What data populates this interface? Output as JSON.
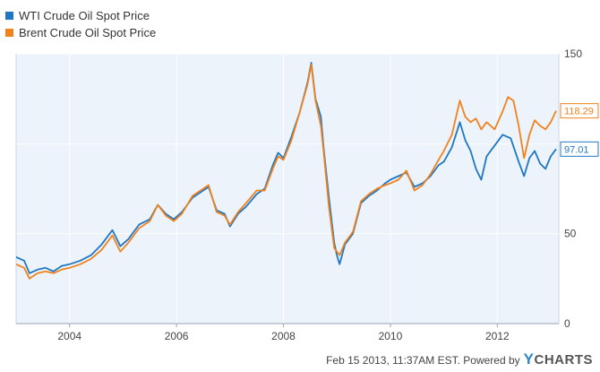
{
  "legend": {
    "items": [
      {
        "label": "WTI Crude Oil Spot Price",
        "color": "#1f77c4"
      },
      {
        "label": "Brent Crude Oil Spot Price",
        "color": "#f0821e"
      }
    ]
  },
  "footer": {
    "text": "Feb 15 2013, 11:37AM EST. Powered by",
    "brand_y": "Y",
    "brand_rest": "CHARTS"
  },
  "chart_data": {
    "type": "line",
    "xlim": [
      2003.0,
      2013.15
    ],
    "ylim": [
      0,
      150
    ],
    "x_ticks": [
      {
        "label": "2004",
        "value": 2004
      },
      {
        "label": "2006",
        "value": 2006
      },
      {
        "label": "2008",
        "value": 2008
      },
      {
        "label": "2010",
        "value": 2010
      },
      {
        "label": "2012",
        "value": 2012
      }
    ],
    "y_ticks": [
      {
        "label": "150",
        "value": 150
      },
      {
        "label": "50",
        "value": 50
      },
      {
        "label": "0",
        "value": 0
      }
    ],
    "grid": true,
    "end_labels": [
      {
        "series": "Brent Crude Oil Spot Price",
        "label": "118.29",
        "value": 118.29
      },
      {
        "series": "WTI Crude Oil Spot Price",
        "label": "97.01",
        "value": 97.01
      }
    ],
    "series": [
      {
        "name": "WTI Crude Oil Spot Price",
        "color": "#1f77c4",
        "points": [
          [
            2003.0,
            37
          ],
          [
            2003.15,
            35
          ],
          [
            2003.25,
            28
          ],
          [
            2003.4,
            30
          ],
          [
            2003.55,
            31
          ],
          [
            2003.7,
            29
          ],
          [
            2003.85,
            32
          ],
          [
            2004.0,
            33
          ],
          [
            2004.2,
            35
          ],
          [
            2004.4,
            38
          ],
          [
            2004.6,
            44
          ],
          [
            2004.8,
            52
          ],
          [
            2004.95,
            43
          ],
          [
            2005.1,
            47
          ],
          [
            2005.3,
            55
          ],
          [
            2005.5,
            58
          ],
          [
            2005.65,
            66
          ],
          [
            2005.8,
            61
          ],
          [
            2005.95,
            58
          ],
          [
            2006.1,
            62
          ],
          [
            2006.3,
            70
          ],
          [
            2006.5,
            74
          ],
          [
            2006.6,
            76
          ],
          [
            2006.75,
            63
          ],
          [
            2006.9,
            61
          ],
          [
            2007.0,
            54
          ],
          [
            2007.15,
            61
          ],
          [
            2007.3,
            65
          ],
          [
            2007.5,
            72
          ],
          [
            2007.65,
            75
          ],
          [
            2007.8,
            88
          ],
          [
            2007.9,
            95
          ],
          [
            2008.0,
            92
          ],
          [
            2008.15,
            104
          ],
          [
            2008.3,
            117
          ],
          [
            2008.45,
            134
          ],
          [
            2008.52,
            145
          ],
          [
            2008.6,
            125
          ],
          [
            2008.7,
            115
          ],
          [
            2008.75,
            98
          ],
          [
            2008.85,
            70
          ],
          [
            2008.95,
            45
          ],
          [
            2009.0,
            38
          ],
          [
            2009.05,
            33
          ],
          [
            2009.15,
            44
          ],
          [
            2009.3,
            50
          ],
          [
            2009.45,
            67
          ],
          [
            2009.6,
            71
          ],
          [
            2009.75,
            74
          ],
          [
            2009.9,
            78
          ],
          [
            2010.0,
            80
          ],
          [
            2010.15,
            82
          ],
          [
            2010.3,
            84
          ],
          [
            2010.45,
            76
          ],
          [
            2010.6,
            78
          ],
          [
            2010.75,
            82
          ],
          [
            2010.9,
            88
          ],
          [
            2011.0,
            90
          ],
          [
            2011.15,
            98
          ],
          [
            2011.3,
            112
          ],
          [
            2011.4,
            102
          ],
          [
            2011.5,
            96
          ],
          [
            2011.6,
            86
          ],
          [
            2011.7,
            80
          ],
          [
            2011.8,
            93
          ],
          [
            2011.95,
            99
          ],
          [
            2012.1,
            105
          ],
          [
            2012.25,
            103
          ],
          [
            2012.4,
            90
          ],
          [
            2012.5,
            82
          ],
          [
            2012.6,
            92
          ],
          [
            2012.7,
            96
          ],
          [
            2012.8,
            89
          ],
          [
            2012.9,
            86
          ],
          [
            2013.0,
            93
          ],
          [
            2013.1,
            97.01
          ]
        ]
      },
      {
        "name": "Brent Crude Oil Spot Price",
        "color": "#f0821e",
        "points": [
          [
            2003.0,
            33
          ],
          [
            2003.15,
            31
          ],
          [
            2003.25,
            25
          ],
          [
            2003.4,
            28
          ],
          [
            2003.55,
            29
          ],
          [
            2003.7,
            28
          ],
          [
            2003.85,
            30
          ],
          [
            2004.0,
            31
          ],
          [
            2004.2,
            33
          ],
          [
            2004.4,
            36
          ],
          [
            2004.6,
            41
          ],
          [
            2004.8,
            49
          ],
          [
            2004.95,
            40
          ],
          [
            2005.1,
            45
          ],
          [
            2005.3,
            53
          ],
          [
            2005.5,
            57
          ],
          [
            2005.65,
            66
          ],
          [
            2005.8,
            60
          ],
          [
            2005.95,
            57
          ],
          [
            2006.1,
            61
          ],
          [
            2006.3,
            71
          ],
          [
            2006.5,
            75
          ],
          [
            2006.6,
            77
          ],
          [
            2006.75,
            62
          ],
          [
            2006.9,
            60
          ],
          [
            2007.0,
            55
          ],
          [
            2007.15,
            62
          ],
          [
            2007.3,
            67
          ],
          [
            2007.5,
            74
          ],
          [
            2007.65,
            74
          ],
          [
            2007.8,
            86
          ],
          [
            2007.9,
            93
          ],
          [
            2008.0,
            91
          ],
          [
            2008.15,
            102
          ],
          [
            2008.3,
            117
          ],
          [
            2008.45,
            133
          ],
          [
            2008.52,
            144
          ],
          [
            2008.6,
            124
          ],
          [
            2008.7,
            110
          ],
          [
            2008.75,
            96
          ],
          [
            2008.85,
            65
          ],
          [
            2008.95,
            42
          ],
          [
            2009.0,
            40
          ],
          [
            2009.05,
            38
          ],
          [
            2009.15,
            45
          ],
          [
            2009.3,
            51
          ],
          [
            2009.45,
            68
          ],
          [
            2009.6,
            72
          ],
          [
            2009.75,
            75
          ],
          [
            2009.9,
            77
          ],
          [
            2010.0,
            78
          ],
          [
            2010.15,
            80
          ],
          [
            2010.3,
            85
          ],
          [
            2010.45,
            74
          ],
          [
            2010.6,
            77
          ],
          [
            2010.75,
            83
          ],
          [
            2010.9,
            91
          ],
          [
            2011.0,
            96
          ],
          [
            2011.15,
            105
          ],
          [
            2011.3,
            124
          ],
          [
            2011.4,
            115
          ],
          [
            2011.5,
            112
          ],
          [
            2011.6,
            114
          ],
          [
            2011.7,
            108
          ],
          [
            2011.8,
            112
          ],
          [
            2011.95,
            108
          ],
          [
            2012.1,
            118
          ],
          [
            2012.2,
            126
          ],
          [
            2012.3,
            124
          ],
          [
            2012.4,
            110
          ],
          [
            2012.5,
            92
          ],
          [
            2012.6,
            105
          ],
          [
            2012.7,
            113
          ],
          [
            2012.8,
            110
          ],
          [
            2012.9,
            108
          ],
          [
            2013.0,
            112
          ],
          [
            2013.1,
            118.29
          ]
        ]
      }
    ]
  }
}
